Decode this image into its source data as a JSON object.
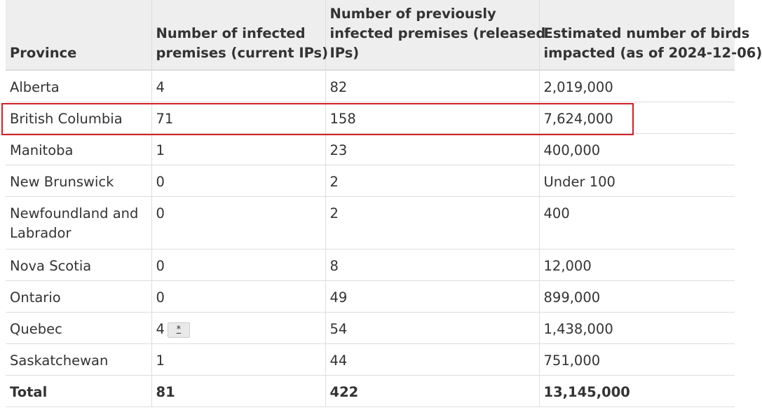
{
  "table": {
    "headers": [
      "Province",
      "Number of infected premises (current IPs)",
      "Number of previously infected premises (released IPs)",
      "Estimated number of birds impacted (as of 2024-12-06)"
    ],
    "header_lines": [
      [
        "Province"
      ],
      [
        "Number of infected",
        "premises (current IPs)"
      ],
      [
        "Number of previously",
        "infected premises (released",
        "IPs)"
      ],
      [
        "Estimated number of birds",
        "impacted (as of 2024-12-06)"
      ]
    ],
    "rows": [
      {
        "province": "Alberta",
        "current": "4",
        "released": "82",
        "birds": "2,019,000"
      },
      {
        "province": "British Columbia",
        "current": "71",
        "released": "158",
        "birds": "7,624,000"
      },
      {
        "province": "Manitoba",
        "current": "1",
        "released": "23",
        "birds": "400,000"
      },
      {
        "province": "New Brunswick",
        "current": "0",
        "released": "2",
        "birds": "Under 100"
      },
      {
        "province": "Newfoundland and Labrador",
        "current": "0",
        "released": "2",
        "birds": "400"
      },
      {
        "province": "Nova Scotia",
        "current": "0",
        "released": "8",
        "birds": "12,000"
      },
      {
        "province": "Ontario",
        "current": "0",
        "released": "49",
        "birds": "899,000"
      },
      {
        "province": "Quebec",
        "current": "4",
        "released": "54",
        "birds": "1,438,000",
        "footnote": "*"
      },
      {
        "province": "Saskatchewan",
        "current": "1",
        "released": "44",
        "birds": "751,000"
      }
    ],
    "total": {
      "label": "Total",
      "current": "81",
      "released": "422",
      "birds": "13,145,000"
    },
    "highlighted_row": "British Columbia"
  },
  "colors": {
    "header_bg": "#eeeeee",
    "border": "#dddddd",
    "text": "#333333",
    "highlight": "#d32027"
  }
}
